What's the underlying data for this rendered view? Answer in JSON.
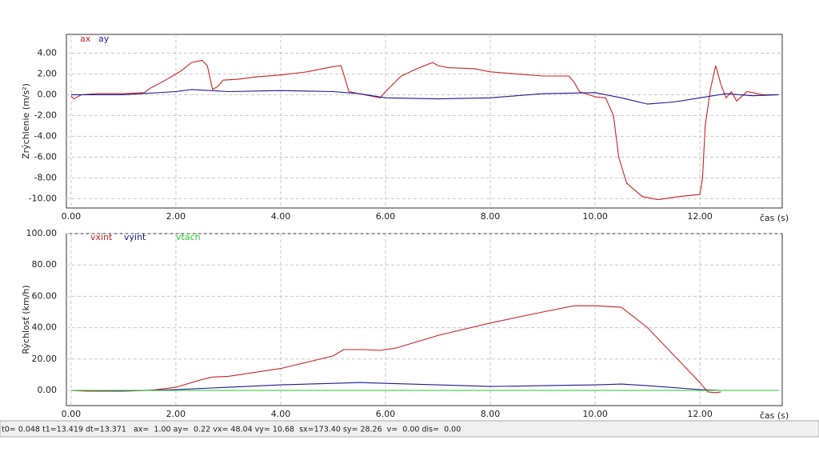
{
  "chart_data": [
    {
      "type": "line",
      "ylabel": "Zrýchlenie (m/s²)",
      "xlabel": "čas (s)",
      "xlim": [
        -0.09,
        13.57
      ],
      "ylim": [
        -10.9,
        5.8
      ],
      "grid": true,
      "xticks": [
        {
          "value": 0,
          "label": "0.00"
        },
        {
          "value": 2,
          "label": "2.00"
        },
        {
          "value": 4,
          "label": "4.00"
        },
        {
          "value": 6,
          "label": "6.00"
        },
        {
          "value": 8,
          "label": "8.00"
        },
        {
          "value": 10,
          "label": "10.00"
        },
        {
          "value": 12,
          "label": "12.00"
        }
      ],
      "yticks": [
        {
          "value": 4,
          "label": "4.00"
        },
        {
          "value": 2,
          "label": "2.00"
        },
        {
          "value": 0,
          "label": "0.00"
        },
        {
          "value": -2,
          "label": "-2.00"
        },
        {
          "value": -4,
          "label": "-4.00"
        },
        {
          "value": -6,
          "label": "-6.00"
        },
        {
          "value": -8,
          "label": "-8.00"
        },
        {
          "value": -10,
          "label": "-10.00"
        }
      ],
      "series": [
        {
          "name": "ax",
          "color": "#cc2222",
          "x": [
            0,
            0.05,
            0.2,
            0.5,
            1,
            1.4,
            1.5,
            1.8,
            2.1,
            2.3,
            2.5,
            2.6,
            2.7,
            2.8,
            2.9,
            3.2,
            3.5,
            4,
            4.5,
            5,
            5.15,
            5.2,
            5.3,
            5.6,
            5.9,
            6.0,
            6.3,
            6.6,
            6.9,
            7.0,
            7.2,
            7.7,
            8,
            8.5,
            9,
            9.5,
            9.6,
            9.7,
            10,
            10.2,
            10.35,
            10.45,
            10.6,
            10.9,
            11.2,
            11.6,
            12.0,
            12.05,
            12.1,
            12.2,
            12.3,
            12.4,
            12.5,
            12.6,
            12.7,
            12.9,
            13.2,
            13.5
          ],
          "values": [
            -0.1,
            -0.4,
            0,
            0.1,
            0.1,
            0.2,
            0.6,
            1.4,
            2.3,
            3.1,
            3.3,
            2.8,
            0.5,
            0.8,
            1.4,
            1.5,
            1.7,
            1.9,
            2.2,
            2.7,
            2.8,
            2.0,
            0.3,
            0.0,
            -0.3,
            0.3,
            1.8,
            2.5,
            3.1,
            2.8,
            2.6,
            2.5,
            2.2,
            2.0,
            1.8,
            1.8,
            1.2,
            0.3,
            -0.2,
            -0.3,
            -2,
            -6,
            -8.5,
            -9.8,
            -10.1,
            -9.8,
            -9.6,
            -8,
            -3,
            0.5,
            2.8,
            1,
            -0.3,
            0.3,
            -0.6,
            0.3,
            0,
            0
          ]
        },
        {
          "name": "ay",
          "color": "#1a1a99",
          "x": [
            0,
            1,
            2,
            2.3,
            3,
            4,
            5,
            5.5,
            6,
            7,
            8,
            9,
            10,
            10.5,
            11,
            11.5,
            12,
            12.5,
            13,
            13.5
          ],
          "values": [
            0,
            0,
            0.3,
            0.5,
            0.3,
            0.4,
            0.3,
            0.1,
            -0.3,
            -0.4,
            -0.3,
            0.1,
            0.2,
            -0.3,
            -0.9,
            -0.7,
            -0.3,
            0.1,
            -0.1,
            0
          ]
        }
      ]
    },
    {
      "type": "line",
      "ylabel": "Rýchlosť (km/h)",
      "xlabel": "čas (s)",
      "xlim": [
        -0.09,
        13.57
      ],
      "ylim": [
        -9.7,
        100
      ],
      "grid": true,
      "xticks": [
        {
          "value": 0,
          "label": "0.00"
        },
        {
          "value": 2,
          "label": "2.00"
        },
        {
          "value": 4,
          "label": "4.00"
        },
        {
          "value": 6,
          "label": "6.00"
        },
        {
          "value": 8,
          "label": "8.00"
        },
        {
          "value": 10,
          "label": "10.00"
        },
        {
          "value": 12,
          "label": "12.00"
        }
      ],
      "yticks": [
        {
          "value": 100,
          "label": "100.00"
        },
        {
          "value": 80,
          "label": "80.00"
        },
        {
          "value": 60,
          "label": "60.00"
        },
        {
          "value": 40,
          "label": "40.00"
        },
        {
          "value": 20,
          "label": "20.00"
        },
        {
          "value": 0,
          "label": "0.00"
        }
      ],
      "series": [
        {
          "name": "vxint",
          "color": "#cc2222",
          "x": [
            0,
            0.3,
            1,
            1.5,
            2,
            2.5,
            2.7,
            3,
            4,
            5,
            5.2,
            5.6,
            5.9,
            6.2,
            7,
            8,
            9,
            9.6,
            10,
            10.5,
            11,
            12,
            12.15,
            12.3,
            12.4
          ],
          "values": [
            0,
            -0.5,
            -0.5,
            0,
            2,
            7,
            8.5,
            9,
            14,
            22,
            26,
            26,
            25.5,
            27,
            35,
            43,
            50,
            54,
            54,
            53,
            40,
            5,
            -1,
            -1.5,
            -1
          ]
        },
        {
          "name": "vyint",
          "color": "#1a1a99",
          "x": [
            0,
            1,
            2,
            3,
            4,
            5,
            5.5,
            6,
            7,
            8,
            9,
            10,
            10.5,
            11,
            12,
            12.4
          ],
          "values": [
            0,
            -0.3,
            0.5,
            2,
            3.5,
            4.5,
            5,
            4.5,
            3.5,
            2.5,
            3,
            3.5,
            4,
            3,
            0.5,
            0
          ]
        },
        {
          "name": "vtach",
          "color": "#22cc22",
          "x": [
            0,
            13.5
          ],
          "values": [
            0,
            0
          ]
        }
      ]
    }
  ],
  "status_bar": "t0= 0.048 t1=13.419 dt=13.371   ax=  1.00 ay=  0.22 vx= 48.04 vy= 10.68  sx=173.40 sy= 28.26  v=  0.00 dis=  0.00"
}
